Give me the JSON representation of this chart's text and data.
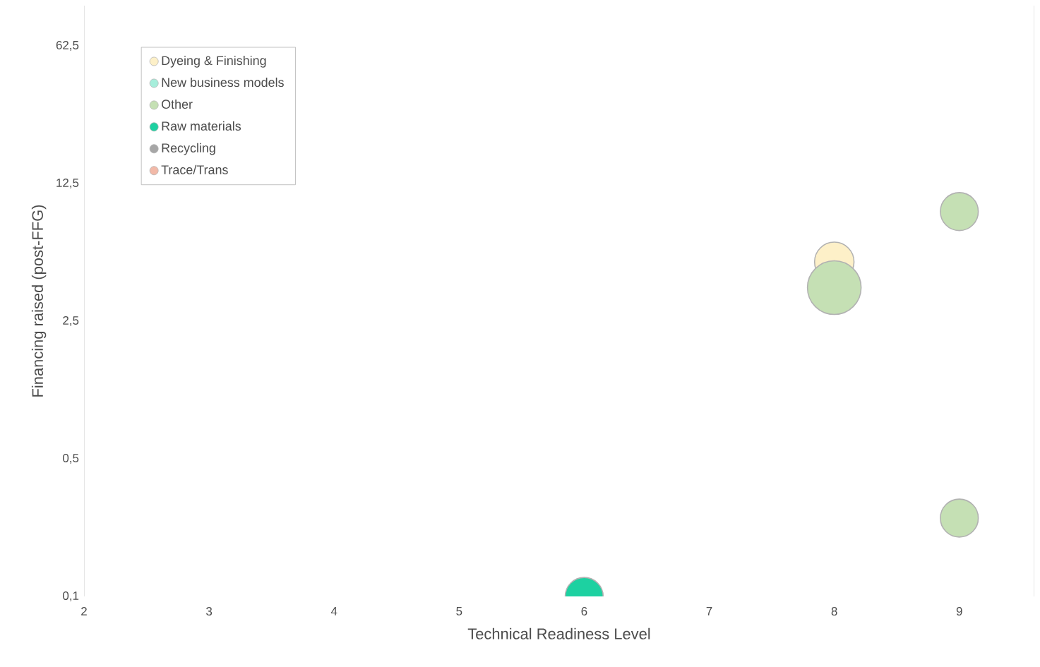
{
  "chart_data": {
    "type": "bubble",
    "xlabel": "Technical Readiness Level",
    "ylabel": "Financing raised (post-FFG)",
    "xlim": [
      2,
      9.6
    ],
    "xticks": [
      2,
      3,
      4,
      5,
      6,
      7,
      8,
      9
    ],
    "ylim": [
      0.1,
      100
    ],
    "yticks": [
      {
        "value": 0.1,
        "label": "0,1"
      },
      {
        "value": 0.5,
        "label": "0,5"
      },
      {
        "value": 2.5,
        "label": "2,5"
      },
      {
        "value": 12.5,
        "label": "12,5"
      },
      {
        "value": 62.5,
        "label": "62,5"
      }
    ],
    "log": "y",
    "grid": false,
    "legend": "top left",
    "series": [
      {
        "name": "Dyeing & Finishing",
        "color": "#fdf0c8",
        "x": [
          8
        ],
        "values": [
          5.0
        ],
        "sizes": [
          0.54
        ]
      },
      {
        "name": "New business models",
        "color": "#a6eedb"
      },
      {
        "name": "Other",
        "color": "#c5e0b4",
        "x": [
          8,
          9,
          9
        ],
        "values": [
          3.7,
          9.0,
          0.25
        ],
        "sizes": [
          1,
          0.5,
          0.5
        ]
      },
      {
        "name": "Raw materials",
        "color": "#1dd1a1",
        "x": [
          6
        ],
        "values": [
          0.1
        ],
        "sizes": [
          0.5
        ]
      },
      {
        "name": "Recycling",
        "color": "#a6a6a6"
      },
      {
        "name": "Trace/Trans",
        "color": "#f2b9a8"
      }
    ]
  }
}
